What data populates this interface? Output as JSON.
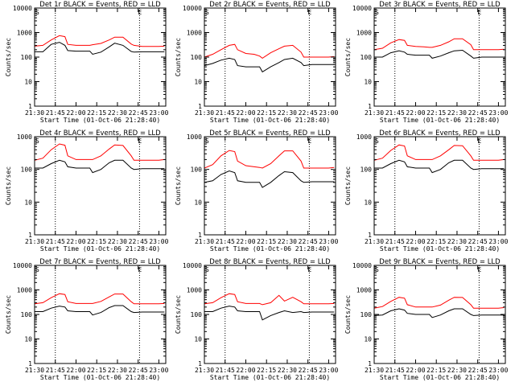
{
  "figure": {
    "background": "#ffffff",
    "axis_color": "#000000",
    "events_color": "#000000",
    "lld_color": "#ff0000"
  },
  "chart_data": [
    {
      "type": "line",
      "title": "Det 1r BLACK = Events, RED = LLD",
      "xlabel": "Start Time (01-Oct-06 21:28:40)",
      "ylabel": "Counts/sec",
      "yscale": "log",
      "ylim": [
        1,
        10000
      ],
      "xlim": [
        "21:30",
        "23:05"
      ],
      "x_ticks": [
        "21:30",
        "21:45",
        "22:00",
        "22:15",
        "22:30",
        "22:45",
        "23:00"
      ],
      "y_ticks": [
        "1",
        "10",
        "100",
        "1000",
        "10000"
      ],
      "vlines": [
        "21:45",
        "22:46"
      ],
      "corner_marks": [
        "S",
        "E"
      ],
      "grid": false,
      "legend": "none",
      "x": [
        "21:30",
        "21:36",
        "21:42",
        "21:48",
        "21:52",
        "21:54",
        "22:00",
        "22:06",
        "22:10",
        "22:12",
        "22:18",
        "22:24",
        "22:28",
        "22:34",
        "22:40",
        "22:42",
        "22:48",
        "22:54",
        "23:00",
        "23:04"
      ],
      "series": [
        {
          "name": "BLACK = Events",
          "color": "#000000",
          "values": [
            165,
            165,
            330,
            400,
            300,
            185,
            175,
            175,
            175,
            130,
            160,
            260,
            370,
            300,
            170,
            160,
            165,
            165,
            165,
            165
          ]
        },
        {
          "name": "RED = LLD",
          "color": "#ff0000",
          "values": [
            280,
            300,
            500,
            750,
            680,
            330,
            300,
            300,
            300,
            320,
            360,
            500,
            650,
            650,
            340,
            300,
            270,
            270,
            270,
            280
          ]
        }
      ]
    },
    {
      "type": "line",
      "title": "Det 2r BLACK = Events, RED = LLD",
      "xlabel": "Start Time (01-Oct-06 21:28:40)",
      "ylabel": "Counts/sec",
      "yscale": "log",
      "ylim": [
        1,
        10000
      ],
      "xlim": [
        "21:30",
        "23:05"
      ],
      "x_ticks": [
        "21:30",
        "21:45",
        "22:00",
        "22:15",
        "22:30",
        "22:45",
        "23:00"
      ],
      "y_ticks": [
        "1",
        "10",
        "100",
        "1000",
        "10000"
      ],
      "vlines": [
        "21:45",
        "22:46"
      ],
      "corner_marks": [
        "S",
        "E"
      ],
      "grid": false,
      "legend": "none",
      "x": [
        "21:30",
        "21:36",
        "21:42",
        "21:48",
        "21:52",
        "21:54",
        "22:00",
        "22:06",
        "22:10",
        "22:12",
        "22:18",
        "22:24",
        "22:28",
        "22:34",
        "22:40",
        "22:42",
        "22:48",
        "22:54",
        "23:00",
        "23:04"
      ],
      "series": [
        {
          "name": "BLACK = Events",
          "color": "#000000",
          "values": [
            45,
            55,
            75,
            90,
            80,
            45,
            40,
            40,
            40,
            25,
            40,
            60,
            80,
            90,
            60,
            45,
            50,
            50,
            50,
            50
          ]
        },
        {
          "name": "RED = LLD",
          "color": "#ff0000",
          "values": [
            100,
            130,
            200,
            300,
            330,
            200,
            140,
            130,
            110,
            90,
            150,
            220,
            280,
            300,
            160,
            100,
            100,
            100,
            100,
            105
          ]
        }
      ]
    },
    {
      "type": "line",
      "title": "Det 3r BLACK = Events, RED = LLD",
      "xlabel": "Start Time (01-Oct-06 21:28:40)",
      "ylabel": "Counts/sec",
      "yscale": "log",
      "ylim": [
        1,
        10000
      ],
      "xlim": [
        "21:30",
        "23:05"
      ],
      "x_ticks": [
        "21:30",
        "21:45",
        "22:00",
        "22:15",
        "22:30",
        "22:45",
        "23:00"
      ],
      "y_ticks": [
        "1",
        "10",
        "100",
        "1000",
        "10000"
      ],
      "vlines": [
        "21:45",
        "22:46"
      ],
      "corner_marks": [
        "S",
        "E"
      ],
      "grid": false,
      "legend": "none",
      "x": [
        "21:30",
        "21:36",
        "21:42",
        "21:48",
        "21:52",
        "21:54",
        "22:00",
        "22:06",
        "22:10",
        "22:12",
        "22:18",
        "22:24",
        "22:28",
        "22:34",
        "22:40",
        "22:42",
        "22:48",
        "22:54",
        "23:00",
        "23:04"
      ],
      "series": [
        {
          "name": "BLACK = Events",
          "color": "#000000",
          "values": [
            100,
            100,
            150,
            180,
            160,
            130,
            120,
            120,
            120,
            90,
            110,
            150,
            180,
            190,
            110,
            90,
            100,
            100,
            100,
            100
          ]
        },
        {
          "name": "RED = LLD",
          "color": "#ff0000",
          "values": [
            200,
            230,
            380,
            520,
            480,
            300,
            270,
            260,
            250,
            250,
            300,
            420,
            560,
            560,
            320,
            200,
            200,
            200,
            200,
            210
          ]
        }
      ]
    },
    {
      "type": "line",
      "title": "Det 4r BLACK = Events, RED = LLD",
      "xlabel": "Start Time (01-Oct-06 21:28:40)",
      "ylabel": "Counts/sec",
      "yscale": "log",
      "ylim": [
        1,
        1000
      ],
      "xlim": [
        "21:30",
        "23:05"
      ],
      "x_ticks": [
        "21:30",
        "21:45",
        "22:00",
        "22:15",
        "22:30",
        "22:45",
        "23:00"
      ],
      "y_ticks": [
        "1",
        "10",
        "100",
        "1000"
      ],
      "vlines": [
        "21:45",
        "22:46"
      ],
      "corner_marks": [
        "S",
        "E"
      ],
      "grid": false,
      "legend": "none",
      "x": [
        "21:30",
        "21:36",
        "21:42",
        "21:48",
        "21:52",
        "21:54",
        "22:00",
        "22:06",
        "22:10",
        "22:12",
        "22:18",
        "22:24",
        "22:28",
        "22:34",
        "22:40",
        "22:42",
        "22:48",
        "22:54",
        "23:00",
        "23:04"
      ],
      "series": [
        {
          "name": "BLACK = Events",
          "color": "#000000",
          "values": [
            110,
            110,
            150,
            190,
            170,
            120,
            110,
            110,
            110,
            80,
            100,
            160,
            190,
            190,
            110,
            100,
            105,
            105,
            105,
            105
          ]
        },
        {
          "name": "RED = LLD",
          "color": "#ff0000",
          "values": [
            190,
            220,
            400,
            600,
            550,
            260,
            200,
            200,
            200,
            200,
            260,
            420,
            560,
            540,
            260,
            190,
            190,
            190,
            190,
            200
          ]
        }
      ]
    },
    {
      "type": "line",
      "title": "Det 5r BLACK = Events, RED = LLD",
      "xlabel": "Start Time (01-Oct-06 21:28:40)",
      "ylabel": "Counts/sec",
      "yscale": "log",
      "ylim": [
        1,
        1000
      ],
      "xlim": [
        "21:30",
        "23:05"
      ],
      "x_ticks": [
        "21:30",
        "21:45",
        "22:00",
        "22:15",
        "22:30",
        "22:45",
        "23:00"
      ],
      "y_ticks": [
        "1",
        "10",
        "100",
        "1000"
      ],
      "vlines": [
        "21:45",
        "22:46"
      ],
      "corner_marks": [
        "S",
        "E"
      ],
      "grid": false,
      "legend": "none",
      "x": [
        "21:30",
        "21:36",
        "21:42",
        "21:48",
        "21:52",
        "21:54",
        "22:00",
        "22:06",
        "22:10",
        "22:12",
        "22:18",
        "22:24",
        "22:28",
        "22:34",
        "22:40",
        "22:42",
        "22:48",
        "22:54",
        "23:00",
        "23:04"
      ],
      "series": [
        {
          "name": "BLACK = Events",
          "color": "#000000",
          "values": [
            40,
            45,
            70,
            90,
            80,
            45,
            40,
            40,
            40,
            28,
            40,
            65,
            85,
            80,
            45,
            40,
            42,
            42,
            42,
            42
          ]
        },
        {
          "name": "RED = LLD",
          "color": "#ff0000",
          "values": [
            110,
            140,
            260,
            380,
            350,
            180,
            130,
            120,
            115,
            110,
            150,
            260,
            370,
            370,
            180,
            110,
            110,
            110,
            110,
            115
          ]
        }
      ]
    },
    {
      "type": "line",
      "title": "Det 6r BLACK = Events, RED = LLD",
      "xlabel": "Start Time (01-Oct-06 21:28:40)",
      "ylabel": "Counts/sec",
      "yscale": "log",
      "ylim": [
        1,
        1000
      ],
      "xlim": [
        "21:30",
        "23:05"
      ],
      "x_ticks": [
        "21:30",
        "21:45",
        "22:00",
        "22:15",
        "22:30",
        "22:45",
        "23:00"
      ],
      "y_ticks": [
        "1",
        "10",
        "100",
        "1000"
      ],
      "vlines": [
        "21:45",
        "22:46"
      ],
      "corner_marks": [
        "S",
        "E"
      ],
      "grid": false,
      "legend": "none",
      "x": [
        "21:30",
        "21:36",
        "21:42",
        "21:48",
        "21:52",
        "21:54",
        "22:00",
        "22:06",
        "22:10",
        "22:12",
        "22:18",
        "22:24",
        "22:28",
        "22:34",
        "22:40",
        "22:42",
        "22:48",
        "22:54",
        "23:00",
        "23:04"
      ],
      "series": [
        {
          "name": "BLACK = Events",
          "color": "#000000",
          "values": [
            110,
            110,
            150,
            190,
            170,
            120,
            110,
            110,
            110,
            80,
            100,
            160,
            190,
            190,
            110,
            100,
            105,
            105,
            105,
            105
          ]
        },
        {
          "name": "RED = LLD",
          "color": "#ff0000",
          "values": [
            190,
            220,
            380,
            560,
            520,
            260,
            200,
            200,
            200,
            200,
            260,
            400,
            540,
            530,
            260,
            190,
            190,
            190,
            190,
            200
          ]
        }
      ]
    },
    {
      "type": "line",
      "title": "Det 7r BLACK = Events, RED = LLD",
      "xlabel": "Start Time (01-Oct-06 21:28:40)",
      "ylabel": "Counts/sec",
      "yscale": "log",
      "ylim": [
        1,
        10000
      ],
      "xlim": [
        "21:30",
        "23:05"
      ],
      "x_ticks": [
        "21:30",
        "21:45",
        "22:00",
        "22:15",
        "22:30",
        "22:45",
        "23:00"
      ],
      "y_ticks": [
        "1",
        "10",
        "100",
        "1000",
        "10000"
      ],
      "vlines": [
        "21:45",
        "22:46"
      ],
      "corner_marks": [
        "S",
        "E"
      ],
      "grid": false,
      "legend": "none",
      "x": [
        "21:30",
        "21:36",
        "21:42",
        "21:48",
        "21:52",
        "21:54",
        "22:00",
        "22:06",
        "22:10",
        "22:12",
        "22:18",
        "22:24",
        "22:28",
        "22:34",
        "22:40",
        "22:42",
        "22:48",
        "22:54",
        "23:00",
        "23:04"
      ],
      "series": [
        {
          "name": "BLACK = Events",
          "color": "#000000",
          "values": [
            130,
            130,
            180,
            220,
            200,
            140,
            130,
            130,
            130,
            95,
            120,
            190,
            230,
            230,
            130,
            120,
            125,
            125,
            125,
            125
          ]
        },
        {
          "name": "RED = LLD",
          "color": "#ff0000",
          "values": [
            270,
            300,
            480,
            700,
            650,
            330,
            280,
            280,
            280,
            280,
            340,
            520,
            680,
            680,
            330,
            270,
            270,
            270,
            270,
            280
          ]
        }
      ]
    },
    {
      "type": "line",
      "title": "Det 8r BLACK = Events, RED = LLD",
      "xlabel": "Start Time (01-Oct-06 21:28:40)",
      "ylabel": "Counts/sec",
      "yscale": "log",
      "ylim": [
        1,
        10000
      ],
      "xlim": [
        "21:30",
        "23:05"
      ],
      "x_ticks": [
        "21:30",
        "21:45",
        "22:00",
        "22:15",
        "22:30",
        "22:45",
        "23:00"
      ],
      "y_ticks": [
        "1",
        "10",
        "100",
        "1000",
        "10000"
      ],
      "vlines": [
        "21:45",
        "22:46"
      ],
      "corner_marks": [
        "S",
        "E"
      ],
      "grid": false,
      "legend": "none",
      "x": [
        "21:30",
        "21:36",
        "21:42",
        "21:48",
        "21:52",
        "21:54",
        "22:00",
        "22:06",
        "22:10",
        "22:12",
        "22:18",
        "22:24",
        "22:28",
        "22:34",
        "22:40",
        "22:42",
        "22:48",
        "22:54",
        "23:00",
        "23:04"
      ],
      "series": [
        {
          "name": "BLACK = Events",
          "color": "#000000",
          "values": [
            130,
            130,
            180,
            220,
            200,
            140,
            130,
            130,
            130,
            60,
            90,
            120,
            140,
            120,
            130,
            120,
            125,
            125,
            125,
            125
          ]
        },
        {
          "name": "RED = LLD",
          "color": "#ff0000",
          "values": [
            270,
            300,
            480,
            700,
            650,
            330,
            280,
            280,
            280,
            250,
            300,
            600,
            350,
            500,
            330,
            270,
            270,
            270,
            270,
            280
          ]
        }
      ]
    },
    {
      "type": "line",
      "title": "Det 9r BLACK = Events, RED = LLD",
      "xlabel": "Start Time (01-Oct-06 21:28:40)",
      "ylabel": "Counts/sec",
      "yscale": "log",
      "ylim": [
        1,
        10000
      ],
      "xlim": [
        "21:30",
        "23:05"
      ],
      "x_ticks": [
        "21:30",
        "21:45",
        "22:00",
        "22:15",
        "22:30",
        "22:45",
        "23:00"
      ],
      "y_ticks": [
        "1",
        "10",
        "100",
        "1000",
        "10000"
      ],
      "vlines": [
        "21:45",
        "22:46"
      ],
      "corner_marks": [
        "S",
        "E"
      ],
      "grid": false,
      "legend": "none",
      "x": [
        "21:30",
        "21:36",
        "21:42",
        "21:48",
        "21:52",
        "21:54",
        "22:00",
        "22:06",
        "22:10",
        "22:12",
        "22:18",
        "22:24",
        "22:28",
        "22:34",
        "22:40",
        "22:42",
        "22:48",
        "22:54",
        "23:00",
        "23:04"
      ],
      "series": [
        {
          "name": "BLACK = Events",
          "color": "#000000",
          "values": [
            90,
            95,
            140,
            170,
            150,
            110,
            100,
            100,
            100,
            75,
            95,
            140,
            170,
            170,
            100,
            90,
            95,
            95,
            95,
            95
          ]
        },
        {
          "name": "RED = LLD",
          "color": "#ff0000",
          "values": [
            180,
            210,
            340,
            500,
            460,
            250,
            200,
            200,
            200,
            200,
            240,
            380,
            500,
            490,
            250,
            180,
            180,
            180,
            180,
            190
          ]
        }
      ]
    }
  ]
}
